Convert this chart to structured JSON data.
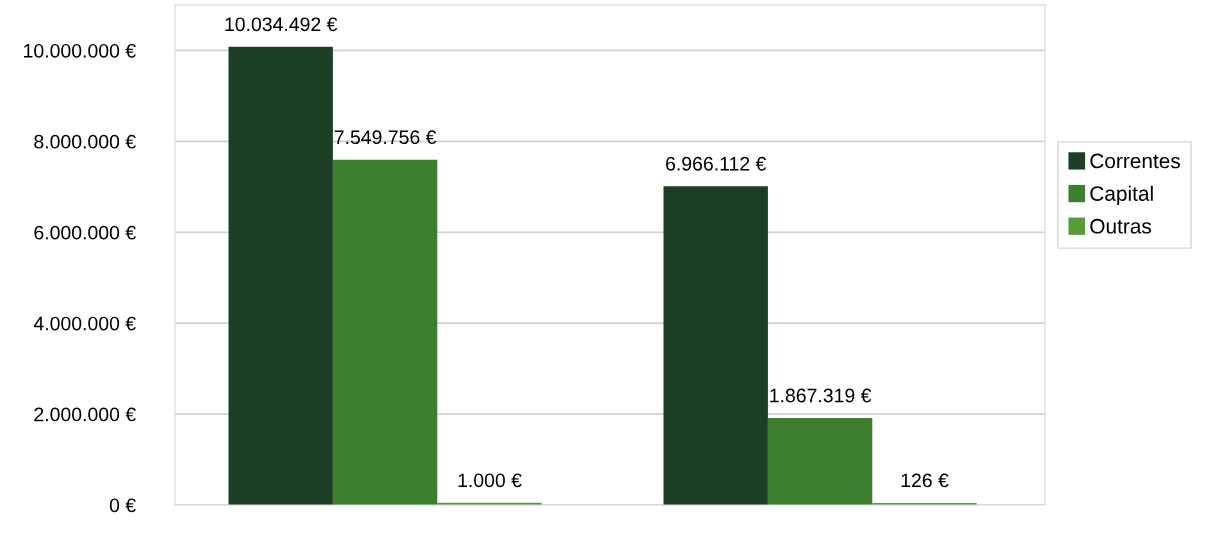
{
  "chart_data": {
    "type": "bar",
    "categories": [
      null,
      null
    ],
    "series": [
      {
        "name": "Correntes",
        "color": "#1c3f25",
        "values": [
          10034492,
          6966112
        ],
        "value_labels": [
          "10.034.492 €",
          "6.966.112 €"
        ]
      },
      {
        "name": "Capital",
        "color": "#3e7f2f",
        "values": [
          7549756,
          1867319
        ],
        "value_labels": [
          "7.549.756 €",
          "1.867.319 €"
        ]
      },
      {
        "name": "Outras",
        "color": "#5a9a3a",
        "values": [
          1000,
          126
        ],
        "value_labels": [
          "1.000 €",
          "126 €"
        ]
      }
    ],
    "ylim": [
      0,
      11000000
    ],
    "yticks": [
      {
        "value": 0,
        "label": "0 €"
      },
      {
        "value": 2000000,
        "label": "2.000.000 €"
      },
      {
        "value": 4000000,
        "label": "4.000.000 €"
      },
      {
        "value": 6000000,
        "label": "6.000.000 €"
      },
      {
        "value": 8000000,
        "label": "8.000.000 €"
      },
      {
        "value": 10000000,
        "label": "10.000.000 €"
      }
    ],
    "grid": "y",
    "legend": "right",
    "tick_labels": "y"
  }
}
